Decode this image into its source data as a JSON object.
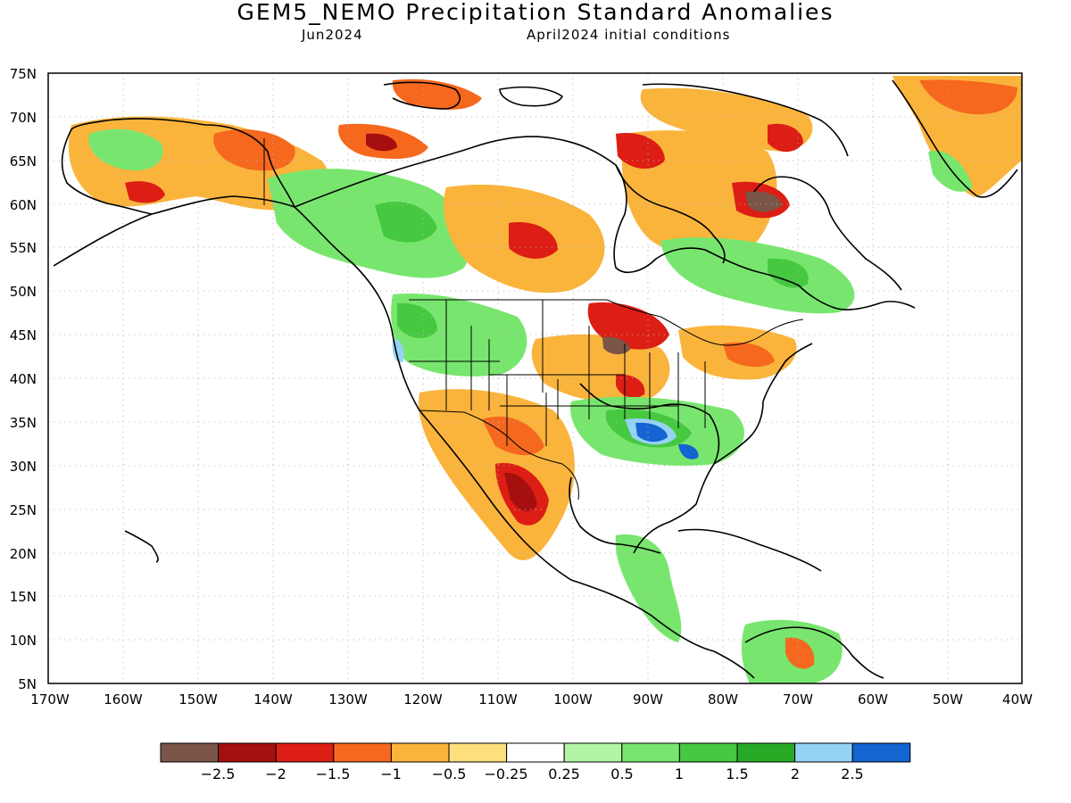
{
  "title": "GEM5_NEMO Precipitation Standard Anomalies",
  "subtitle_left": "Jun2024",
  "subtitle_right": "April2024 initial conditions",
  "map": {
    "lat_ticks": [
      "75N",
      "70N",
      "65N",
      "60N",
      "55N",
      "50N",
      "45N",
      "40N",
      "35N",
      "30N",
      "25N",
      "20N",
      "15N",
      "10N",
      "5N"
    ],
    "lon_ticks": [
      "170W",
      "160W",
      "150W",
      "140W",
      "130W",
      "120W",
      "110W",
      "100W",
      "90W",
      "80W",
      "70W",
      "60W",
      "50W",
      "40W"
    ],
    "lat_range": [
      5,
      75
    ],
    "lon_range": [
      -170,
      -40
    ]
  },
  "legend": {
    "labels": [
      "−2.5",
      "−2",
      "−1.5",
      "−1",
      "−0.5",
      "−0.25",
      "0.25",
      "0.5",
      "1",
      "1.5",
      "2",
      "2.5"
    ],
    "colors": [
      "#7a5548",
      "#a50f0f",
      "#dc1e14",
      "#f5681e",
      "#fab43c",
      "#fde07c",
      "#ffffff",
      "#b4f5a5",
      "#78e66e",
      "#46c841",
      "#26aa26",
      "#96d2f5",
      "#1464d2"
    ]
  },
  "colors": {
    "very_dry": "#7a5548",
    "dry2": "#a50f0f",
    "dry15": "#dc1e14",
    "dry1": "#f5681e",
    "dry05": "#fab43c",
    "dry025": "#fde07c",
    "neutral": "#ffffff",
    "wet025": "#b4f5a5",
    "wet05": "#78e66e",
    "wet1": "#46c841",
    "wet15": "#26aa26",
    "wet2": "#96d2f5",
    "wet25": "#1464d2"
  }
}
